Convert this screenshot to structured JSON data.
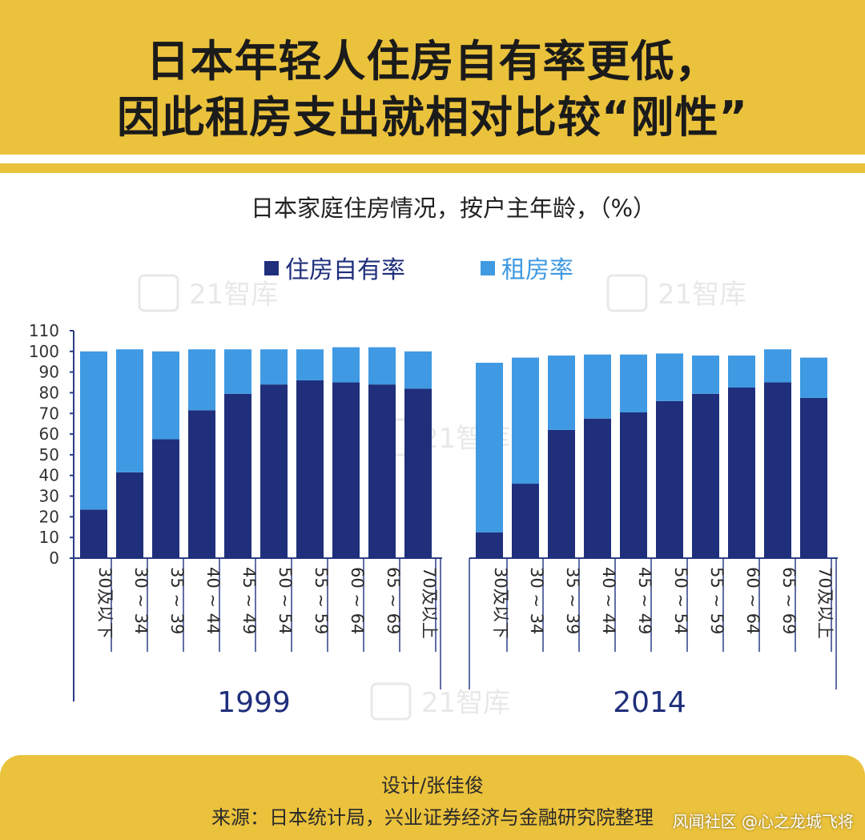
{
  "header": {
    "title_line1": "日本年轻人住房自有率更低，",
    "title_line2": "因此租房支出就相对比较“刚性”"
  },
  "colors": {
    "accent": "#ebc23c",
    "owned": "#1f2f7b",
    "rented": "#3f9ae3",
    "axis": "#2c3e85"
  },
  "chart_data": {
    "type": "bar",
    "stacked": true,
    "title": "日本家庭住房情况，按户主年龄，（%）",
    "ylim": [
      0,
      110
    ],
    "yticks": [
      "0",
      "10",
      "20",
      "30",
      "40",
      "50",
      "60",
      "70",
      "80",
      "90",
      "100",
      "110"
    ],
    "legend_position": "top",
    "groups": [
      {
        "name": "1999",
        "categories": [
          "30及以下",
          "30 ~ 34",
          "35 ~ 39",
          "40 ~ 44",
          "45 ~ 49",
          "50 ~ 54",
          "55 ~ 59",
          "60 ~ 64",
          "65 ~ 69",
          "70及以上"
        ],
        "series": [
          {
            "name": "住房自有率",
            "values": [
              23.5,
              41.5,
              57.5,
              71.5,
              79.5,
              84,
              86,
              85,
              84,
              82
            ]
          },
          {
            "name": "租房率",
            "values": [
              76.5,
              59.5,
              42.5,
              29.5,
              21.5,
              17,
              15,
              17,
              18,
              18
            ]
          }
        ]
      },
      {
        "name": "2014",
        "categories": [
          "30及以下",
          "30 ~ 34",
          "35 ~ 39",
          "40 ~ 44",
          "45 ~ 49",
          "50 ~ 54",
          "55 ~ 59",
          "60 ~ 64",
          "65 ~ 69",
          "70及以上"
        ],
        "series": [
          {
            "name": "住房自有率",
            "values": [
              12.5,
              36,
              62,
              67.5,
              70.5,
              76,
              79.5,
              82.5,
              85,
              77.5
            ]
          },
          {
            "name": "租房率",
            "values": [
              82,
              61,
              36,
              31,
              28,
              23,
              18.5,
              15.5,
              16,
              19.5
            ]
          }
        ]
      }
    ]
  },
  "watermarks": {
    "logo_text": "21智库"
  },
  "footer": {
    "designer": "设计/张佳俊",
    "source": "来源：日本统计局，兴业证券经济与金融研究院整理",
    "platform_watermark": "风闻社区 @心之龙城飞将"
  }
}
